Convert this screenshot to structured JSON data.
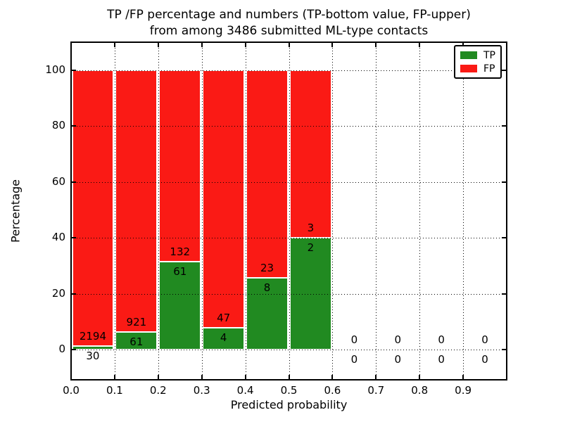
{
  "title": {
    "line1": "TP /FP percentage and numbers (TP-bottom value, FP-upper)",
    "line2": "from among 3486 submitted ML-type contacts"
  },
  "axes": {
    "x_label": "Predicted probability",
    "y_label": "Percentage"
  },
  "legend": {
    "position": "upper right",
    "items": [
      {
        "label": "TP",
        "color": "#218a21"
      },
      {
        "label": "FP",
        "color": "#fa1a15"
      }
    ]
  },
  "chart_data": {
    "type": "bar",
    "stacked": true,
    "title": "TP /FP percentage and numbers (TP-bottom value, FP-upper) from among 3486 submitted ML-type contacts",
    "xlabel": "Predicted probability",
    "ylabel": "Percentage",
    "total_contacts": 3486,
    "xlim": [
      0.0,
      1.0
    ],
    "ylim": [
      -11,
      110
    ],
    "grid": true,
    "legend_position": "upper right",
    "x_tick_values": [
      0.0,
      0.1,
      0.2,
      0.3,
      0.4,
      0.5,
      0.6,
      0.7,
      0.8,
      0.9
    ],
    "x_tick_labels": [
      "0.0",
      "0.1",
      "0.2",
      "0.3",
      "0.4",
      "0.5",
      "0.6",
      "0.7",
      "0.8",
      "0.9"
    ],
    "y_tick_values": [
      0,
      20,
      40,
      60,
      80,
      100
    ],
    "y_tick_labels": [
      "0",
      "20",
      "40",
      "60",
      "80",
      "100"
    ],
    "bins": [
      [
        0.0,
        0.1
      ],
      [
        0.1,
        0.2
      ],
      [
        0.2,
        0.3
      ],
      [
        0.3,
        0.4
      ],
      [
        0.4,
        0.5
      ],
      [
        0.5,
        0.6
      ],
      [
        0.6,
        0.7
      ],
      [
        0.7,
        0.8
      ],
      [
        0.8,
        0.9
      ],
      [
        0.9,
        1.0
      ]
    ],
    "series": [
      {
        "name": "TP",
        "color": "#218a21",
        "counts": [
          30,
          61,
          61,
          4,
          8,
          2,
          0,
          0,
          0,
          0
        ]
      },
      {
        "name": "FP",
        "color": "#fa1a15",
        "counts": [
          2194,
          921,
          132,
          47,
          23,
          3,
          0,
          0,
          0,
          0
        ]
      }
    ],
    "tp_percent_of_bin": [
      1.35,
      6.21,
      31.61,
      7.84,
      25.81,
      40.0,
      0,
      0,
      0,
      0
    ],
    "bar_total_percent": 100
  }
}
